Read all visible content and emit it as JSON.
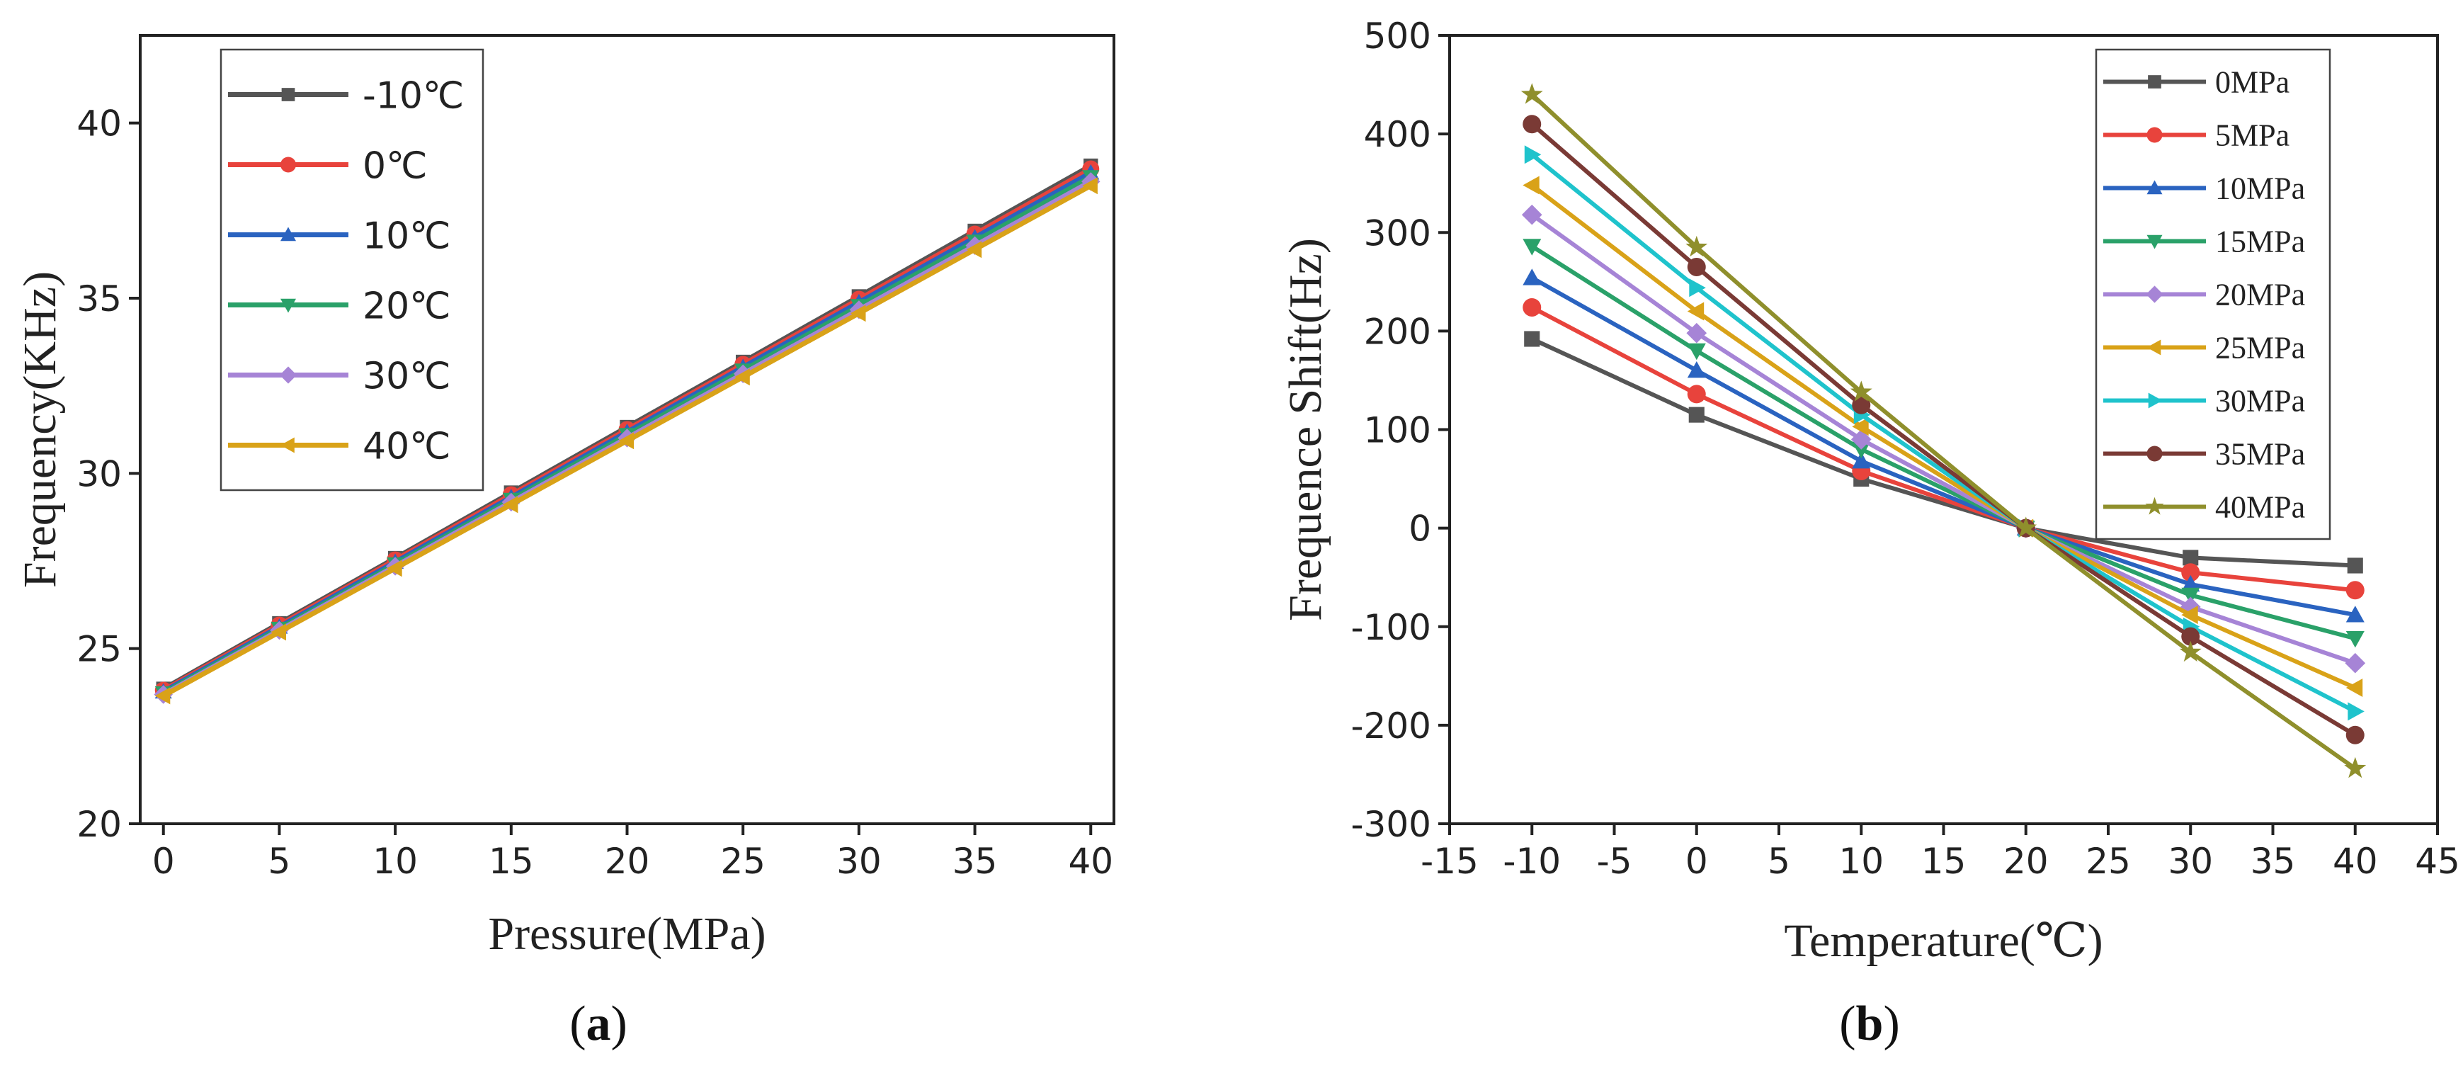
{
  "colors": {
    "c0": "#555555",
    "c1": "#e8433c",
    "c2": "#2a63c0",
    "c3": "#2aa169",
    "c4": "#a684d6",
    "c5": "#d9a218",
    "c6": "#1fc3cc",
    "c7": "#7a3a35",
    "c8": "#8f8f2c"
  },
  "panels": {
    "a": {
      "open": "(",
      "letter": "a",
      "close": ")"
    },
    "b": {
      "open": "(",
      "letter": "b",
      "close": ")"
    }
  },
  "chart_data": [
    {
      "id": "a",
      "type": "line",
      "xlabel": "Pressure(MPa)",
      "ylabel": "Frequency(KHz)",
      "xlim": [
        -1,
        41
      ],
      "ylim": [
        20,
        42.5
      ],
      "xticks": [
        0,
        5,
        10,
        15,
        20,
        25,
        30,
        35,
        40
      ],
      "yticks": [
        20,
        25,
        30,
        35,
        40
      ],
      "x": [
        0,
        5,
        10,
        15,
        20,
        25,
        30,
        35,
        40
      ],
      "legend_position": "top-left",
      "series": [
        {
          "name": "-10℃",
          "marker": "square",
          "color_key": "c0",
          "values": [
            23.85,
            25.72,
            27.58,
            29.45,
            31.32,
            33.18,
            35.05,
            36.92,
            38.78
          ]
        },
        {
          "name": "0℃",
          "marker": "circle",
          "color_key": "c1",
          "values": [
            23.81,
            25.67,
            27.53,
            29.39,
            31.25,
            33.11,
            34.97,
            36.83,
            38.69
          ]
        },
        {
          "name": "10℃",
          "marker": "triangle-up",
          "color_key": "c2",
          "values": [
            23.77,
            25.62,
            27.47,
            29.32,
            31.18,
            33.03,
            34.88,
            36.73,
            38.58
          ]
        },
        {
          "name": "20℃",
          "marker": "triangle-down",
          "color_key": "c3",
          "values": [
            23.73,
            25.57,
            27.41,
            29.25,
            31.1,
            32.94,
            34.78,
            36.62,
            38.46
          ]
        },
        {
          "name": "30℃",
          "marker": "diamond",
          "color_key": "c4",
          "values": [
            23.69,
            25.52,
            27.35,
            29.18,
            31.01,
            32.84,
            34.67,
            36.5,
            38.33
          ]
        },
        {
          "name": "40℃",
          "marker": "triangle-left",
          "color_key": "c5",
          "values": [
            23.65,
            25.47,
            27.29,
            29.11,
            30.93,
            32.75,
            34.57,
            36.39,
            38.21
          ]
        }
      ]
    },
    {
      "id": "b",
      "type": "line",
      "xlabel": "Temperature(℃)",
      "ylabel": "Frequence Shift(Hz)",
      "xlim": [
        -15,
        45
      ],
      "ylim": [
        -300,
        500
      ],
      "xticks": [
        -15,
        -10,
        -5,
        0,
        5,
        10,
        15,
        20,
        25,
        30,
        35,
        40,
        45
      ],
      "yticks": [
        -300,
        -200,
        -100,
        0,
        100,
        200,
        300,
        400,
        500
      ],
      "x": [
        -10,
        0,
        10,
        20,
        30,
        40
      ],
      "legend_position": "top-right",
      "series": [
        {
          "name": "0MPa",
          "marker": "square",
          "color_key": "c0",
          "values": [
            192,
            115,
            50,
            0,
            -30,
            -38
          ]
        },
        {
          "name": "5MPa",
          "marker": "circle",
          "color_key": "c1",
          "values": [
            224,
            136,
            58,
            0,
            -45,
            -63
          ]
        },
        {
          "name": "10MPa",
          "marker": "triangle-up",
          "color_key": "c2",
          "values": [
            254,
            160,
            68,
            0,
            -57,
            -88
          ]
        },
        {
          "name": "15MPa",
          "marker": "triangle-down",
          "color_key": "c3",
          "values": [
            286,
            180,
            80,
            0,
            -68,
            -112
          ]
        },
        {
          "name": "20MPa",
          "marker": "diamond",
          "color_key": "c4",
          "values": [
            318,
            198,
            90,
            0,
            -80,
            -137
          ]
        },
        {
          "name": "25MPa",
          "marker": "triangle-left",
          "color_key": "c5",
          "values": [
            348,
            220,
            103,
            0,
            -88,
            -162
          ]
        },
        {
          "name": "30MPa",
          "marker": "triangle-right",
          "color_key": "c6",
          "values": [
            379,
            244,
            115,
            0,
            -100,
            -186
          ]
        },
        {
          "name": "35MPa",
          "marker": "circle",
          "color_key": "c7",
          "values": [
            410,
            265,
            125,
            0,
            -110,
            -210
          ]
        },
        {
          "name": "40MPa",
          "marker": "star",
          "color_key": "c8",
          "values": [
            440,
            285,
            138,
            0,
            -126,
            -244
          ]
        }
      ]
    }
  ]
}
